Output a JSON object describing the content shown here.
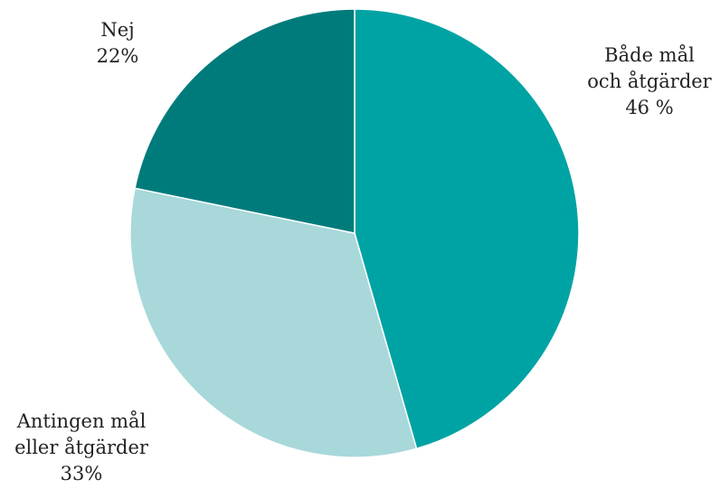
{
  "chart_data": {
    "type": "pie",
    "title": "",
    "slices": [
      {
        "name": "Både mål och åtgärder",
        "value": 46,
        "label_lines": [
          "Både mål",
          "och åtgärder",
          "46 %"
        ],
        "color": "#00A3A3"
      },
      {
        "name": "Antingen mål eller åtgärder",
        "value": 33,
        "label_lines": [
          "Antingen mål",
          "eller åtgärder",
          "33%"
        ],
        "color": "#A8D8DA"
      },
      {
        "name": "Nej",
        "value": 22,
        "label_lines": [
          "Nej",
          "22%"
        ],
        "color": "#007B7C"
      }
    ],
    "start_angle": "12 o'clock",
    "direction": "clockwise",
    "legend": "none"
  }
}
